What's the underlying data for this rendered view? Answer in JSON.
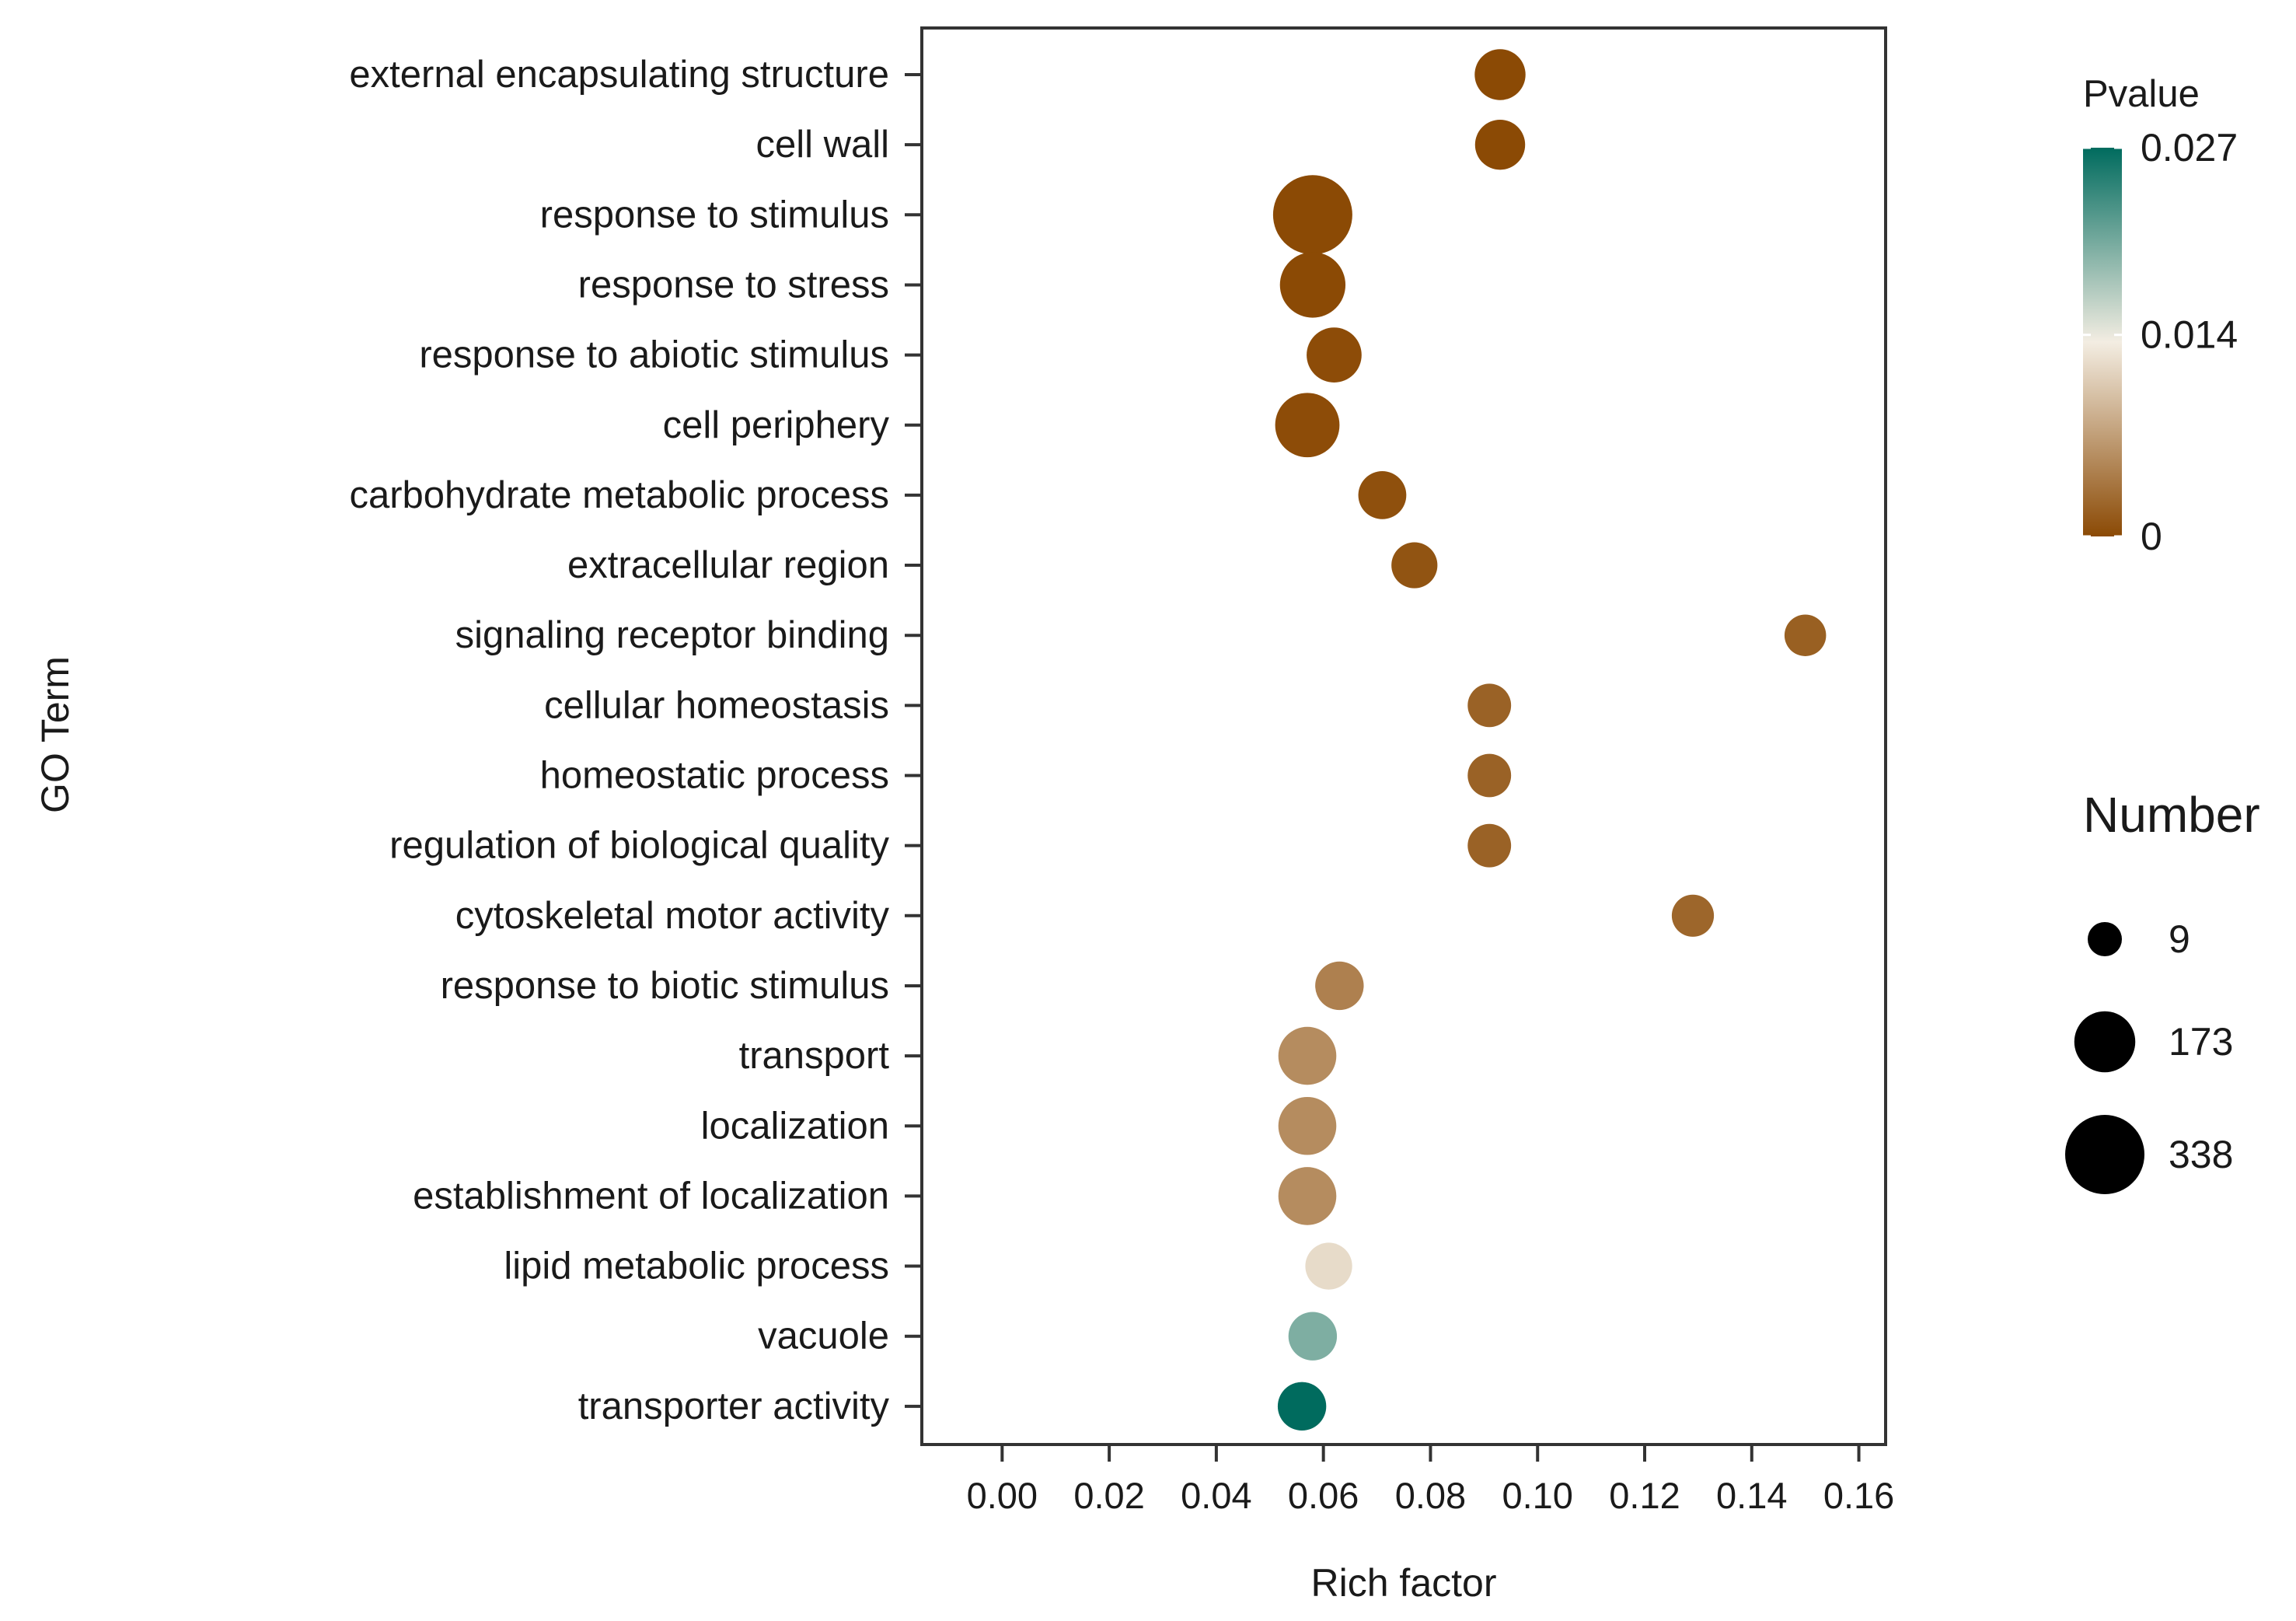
{
  "chart_data": {
    "type": "scatter",
    "xlabel": "Rich factor",
    "ylabel": "GO Term",
    "xlim": [
      -0.015,
      0.165
    ],
    "x_ticks": [
      0.0,
      0.02,
      0.04,
      0.06,
      0.08,
      0.1,
      0.12,
      0.14,
      0.16
    ],
    "x_tick_labels": [
      "0.00",
      "0.02",
      "0.04",
      "0.06",
      "0.08",
      "0.10",
      "0.12",
      "0.14",
      "0.16"
    ],
    "grid": false,
    "terms": [
      {
        "term": "external encapsulating structure",
        "rich_factor": 0.093,
        "pvalue": 0.0,
        "number": 100
      },
      {
        "term": "cell wall",
        "rich_factor": 0.093,
        "pvalue": 0.0,
        "number": 95
      },
      {
        "term": "response to stimulus",
        "rich_factor": 0.058,
        "pvalue": 0.0,
        "number": 338
      },
      {
        "term": "response to stress",
        "rich_factor": 0.058,
        "pvalue": 0.0,
        "number": 210
      },
      {
        "term": "response to abiotic stimulus",
        "rich_factor": 0.062,
        "pvalue": 0.0002,
        "number": 128
      },
      {
        "term": "cell periphery",
        "rich_factor": 0.057,
        "pvalue": 0.0002,
        "number": 200
      },
      {
        "term": "carbohydrate metabolic process",
        "rich_factor": 0.071,
        "pvalue": 0.0005,
        "number": 82
      },
      {
        "term": "extracellular region",
        "rich_factor": 0.077,
        "pvalue": 0.0008,
        "number": 70
      },
      {
        "term": "signaling receptor binding",
        "rich_factor": 0.15,
        "pvalue": 0.0018,
        "number": 45
      },
      {
        "term": "cellular homeostasis",
        "rich_factor": 0.091,
        "pvalue": 0.002,
        "number": 55
      },
      {
        "term": "homeostatic process",
        "rich_factor": 0.091,
        "pvalue": 0.002,
        "number": 55
      },
      {
        "term": "regulation of biological quality",
        "rich_factor": 0.091,
        "pvalue": 0.002,
        "number": 55
      },
      {
        "term": "cytoskeletal motor activity",
        "rich_factor": 0.129,
        "pvalue": 0.0023,
        "number": 48
      },
      {
        "term": "response to biotic stimulus",
        "rich_factor": 0.063,
        "pvalue": 0.0045,
        "number": 85
      },
      {
        "term": "transport",
        "rich_factor": 0.057,
        "pvalue": 0.0055,
        "number": 150
      },
      {
        "term": "localization",
        "rich_factor": 0.057,
        "pvalue": 0.0055,
        "number": 150
      },
      {
        "term": "establishment of localization",
        "rich_factor": 0.057,
        "pvalue": 0.0055,
        "number": 150
      },
      {
        "term": "lipid metabolic process",
        "rich_factor": 0.061,
        "pvalue": 0.012,
        "number": 75
      },
      {
        "term": "vacuole",
        "rich_factor": 0.058,
        "pvalue": 0.02,
        "number": 85
      },
      {
        "term": "transporter activity",
        "rich_factor": 0.056,
        "pvalue": 0.027,
        "number": 85
      }
    ],
    "color_legend": {
      "title": "Pvalue",
      "min": 0,
      "max": 0.027,
      "labels": [
        "0.027",
        "0.014",
        "0"
      ],
      "label_values": [
        0.027,
        0.014,
        0
      ],
      "colors": {
        "low": "#8B4A05",
        "mid": "#F3EDE2",
        "high": "#006B5E"
      }
    },
    "size_legend": {
      "title": "Number",
      "values": [
        9,
        173,
        338
      ],
      "labels": [
        "9",
        "173",
        "338"
      ]
    }
  }
}
